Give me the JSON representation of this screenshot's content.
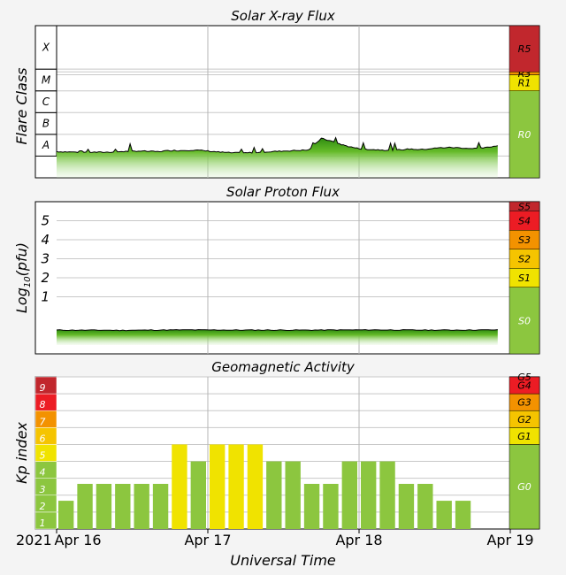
{
  "chart_data": [
    {
      "type": "area",
      "title": "Solar X-ray Flux",
      "ylabel": "Flare Class",
      "y_scale": "log",
      "y_unit": "W/m2",
      "ylim": [
        1e-09,
        0.01
      ],
      "flare_classes": [
        "A",
        "B",
        "C",
        "M",
        "X"
      ],
      "radio_blackout_scale": [
        {
          "label": "R0",
          "color": "#8cc63f"
        },
        {
          "label": "R1",
          "color": "#f0e300"
        },
        {
          "label": "R3",
          "color": "#f39200"
        },
        {
          "label": "R5",
          "color": "#c1272d"
        }
      ],
      "x_range": [
        "2021-04-16 00:00",
        "2021-04-19 00:00"
      ],
      "series": [
        {
          "x_hours": [
            0,
            4,
            8,
            10,
            13,
            16,
            18,
            20,
            22,
            24,
            26,
            28,
            30,
            32,
            34,
            36,
            38,
            40,
            42,
            44,
            45.5,
            46.5,
            48,
            50,
            52,
            54,
            56,
            58,
            60,
            62,
            64,
            66,
            68,
            70
          ],
          "flux": [
            1.6e-08,
            1.5e-08,
            1.5e-08,
            1.6e-08,
            1.7e-08,
            1.6e-08,
            1.8e-08,
            1.8e-08,
            1.9e-08,
            1.7e-08,
            1.5e-08,
            1.4e-08,
            1.4e-08,
            1.5e-08,
            1.6e-08,
            1.7e-08,
            1.8e-08,
            1.9e-08,
            6.5e-08,
            4.5e-08,
            3.2e-08,
            2.7e-08,
            2.2e-08,
            2e-08,
            1.9e-08,
            1.9e-08,
            2.1e-08,
            2e-08,
            2.3e-08,
            2.5e-08,
            2.4e-08,
            2.2e-08,
            2.4e-08,
            3e-08
          ]
        }
      ]
    },
    {
      "type": "area",
      "title": "Solar Proton Flux",
      "ylabel": "Log10(pfu)",
      "yticks": [
        "1",
        "2",
        "3",
        "4",
        "5"
      ],
      "ylim": [
        -2,
        6
      ],
      "radiation_storm_scale": [
        {
          "label": "S0",
          "color": "#8cc63f"
        },
        {
          "label": "S1",
          "color": "#f0e300"
        },
        {
          "label": "S2",
          "color": "#f5c400"
        },
        {
          "label": "S3",
          "color": "#f39200"
        },
        {
          "label": "S4",
          "color": "#ec1c24"
        },
        {
          "label": "S5",
          "color": "#c1272d"
        }
      ],
      "x_range": [
        "2021-04-16 00:00",
        "2021-04-19 00:00"
      ],
      "series": [
        {
          "x_hours": [
            0,
            10,
            20,
            30,
            40,
            50,
            60,
            70
          ],
          "log_pfu": [
            -0.75,
            -0.76,
            -0.74,
            -0.75,
            -0.75,
            -0.74,
            -0.75,
            -0.74
          ]
        }
      ]
    },
    {
      "type": "bar",
      "title": "Geomagnetic Activity",
      "ylabel": "Kp index",
      "xlabel": "Universal Time",
      "ylim": [
        0,
        9
      ],
      "yticks": [
        "1",
        "2",
        "3",
        "4",
        "5",
        "6",
        "7",
        "8",
        "9"
      ],
      "kp_colors": [
        "#8cc63f",
        "#8cc63f",
        "#8cc63f",
        "#8cc63f",
        "#f0e300",
        "#f5c400",
        "#f39200",
        "#ec1c24",
        "#c1272d"
      ],
      "geomagnetic_storm_scale": [
        {
          "label": "G0",
          "color": "#8cc63f"
        },
        {
          "label": "G1",
          "color": "#f0e300"
        },
        {
          "label": "G2",
          "color": "#f5c400"
        },
        {
          "label": "G3",
          "color": "#f39200"
        },
        {
          "label": "G4",
          "color": "#ec1c24"
        },
        {
          "label": "G5",
          "color": "#c1272d"
        }
      ],
      "x_range": [
        "2021-04-16 00:00",
        "2021-04-19 00:00"
      ],
      "interval_hours": 3,
      "kp_values": [
        1.67,
        2.67,
        2.67,
        2.67,
        2.67,
        2.67,
        5,
        4,
        5,
        5,
        5,
        4,
        4,
        2.67,
        2.67,
        4,
        4,
        4,
        2.67,
        2.67,
        1.67,
        1.67
      ]
    }
  ],
  "x_axis": {
    "year": "2021",
    "ticks": [
      {
        "label": "Apr 16",
        "date": "2021-04-16"
      },
      {
        "label": "Apr 17",
        "date": "2021-04-17"
      },
      {
        "label": "Apr 18",
        "date": "2021-04-18"
      },
      {
        "label": "Apr 19",
        "date": "2021-04-19"
      }
    ]
  }
}
